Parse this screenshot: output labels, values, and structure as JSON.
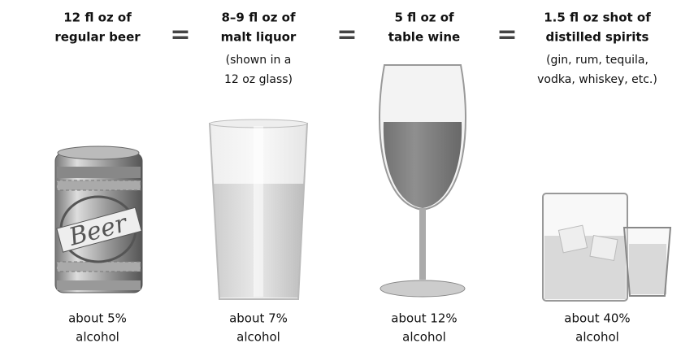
{
  "separator": "=",
  "items": [
    {
      "title": [
        "12 fl oz of",
        "regular beer"
      ],
      "can_label": "Beer",
      "caption": [
        "about 5%",
        "alcohol"
      ]
    },
    {
      "title": [
        "8–9 fl oz of",
        "malt liquor"
      ],
      "subtitle": [
        "(shown in a",
        "12 oz glass)"
      ],
      "caption": [
        "about 7%",
        "alcohol"
      ]
    },
    {
      "title": [
        "5 fl oz of",
        "table wine"
      ],
      "caption": [
        "about 12%",
        "alcohol"
      ]
    },
    {
      "title": [
        "1.5 fl oz shot of",
        "distilled spirits"
      ],
      "subtitle": [
        "(gin, rum, tequila,",
        "vodka, whiskey, etc.)"
      ],
      "caption": [
        "about 40%",
        "alcohol"
      ]
    }
  ]
}
